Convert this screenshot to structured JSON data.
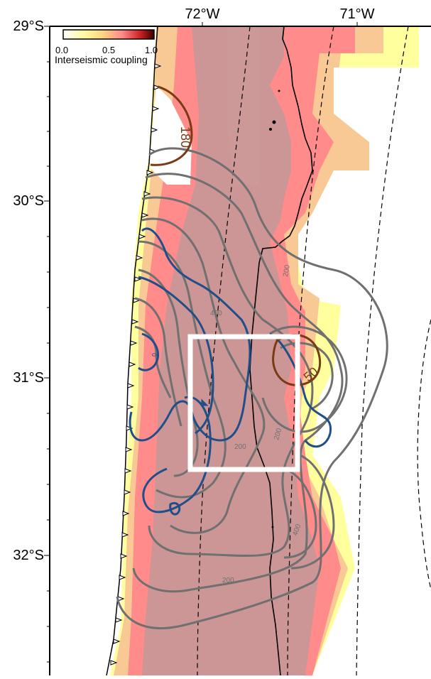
{
  "map": {
    "lat_labels": [
      "29°S",
      "30°S",
      "31°S",
      "32°S"
    ],
    "lon_labels": [
      "72°W",
      "71°W"
    ],
    "colorbar": {
      "title": "Interseismic coupling",
      "tick_labels": [
        "0.0",
        "0.5",
        "1.0"
      ],
      "range": [
        0.0,
        1.0
      ],
      "palette": [
        "#ffffff",
        "#fff99a",
        "#ffd080",
        "#ff8a8a",
        "#cc2020",
        "#3a0000"
      ]
    },
    "contour_labels": [
      "180",
      "50",
      "200",
      "400",
      "200",
      "200",
      "400",
      "200",
      "0"
    ],
    "colors": {
      "coupling_low": "#ffff9e",
      "coupling_mid": "#f9c995",
      "coupling_high": "#ff8b8b",
      "coupling_core": "#cc9696",
      "contour_gray": "#707070",
      "contour_blue": "#1f4e89",
      "contour_brown": "#7a3a14",
      "study_box": "#ffffff"
    }
  }
}
